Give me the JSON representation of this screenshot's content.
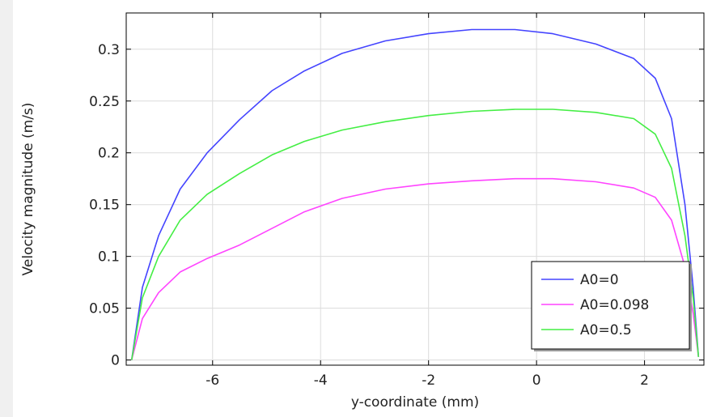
{
  "chart_data": {
    "type": "line",
    "title": "",
    "xlabel": "y-coordinate (mm)",
    "ylabel": "Velocity magnitude (m/s)",
    "xlim": [
      -7.6,
      3.1
    ],
    "ylim": [
      -0.005,
      0.335
    ],
    "xticks": [
      -6,
      -4,
      -2,
      0,
      2
    ],
    "yticks": [
      0,
      0.05,
      0.1,
      0.15,
      0.2,
      0.25,
      0.3
    ],
    "xtick_labels": [
      "-6",
      "-4",
      "-2",
      "0",
      "2"
    ],
    "ytick_labels": [
      "0",
      "0.05",
      "0.1",
      "0.15",
      "0.2",
      "0.25",
      "0.3"
    ],
    "grid": true,
    "legend_position": "bottom-right",
    "series": [
      {
        "name": "A0=0",
        "color": "#4444ff",
        "x": [
          -7.5,
          -7.3,
          -7.0,
          -6.6,
          -6.1,
          -5.5,
          -4.9,
          -4.3,
          -3.6,
          -2.8,
          -2.0,
          -1.2,
          -0.4,
          0.3,
          1.1,
          1.8,
          2.2,
          2.5,
          2.75,
          2.9,
          3.0
        ],
        "y": [
          0.0,
          0.07,
          0.12,
          0.165,
          0.2,
          0.232,
          0.26,
          0.279,
          0.296,
          0.308,
          0.315,
          0.319,
          0.319,
          0.315,
          0.305,
          0.291,
          0.272,
          0.233,
          0.15,
          0.07,
          0.003
        ]
      },
      {
        "name": "A0=0.098",
        "color": "#ff44ff",
        "x": [
          -7.5,
          -7.3,
          -7.0,
          -6.6,
          -6.1,
          -5.5,
          -4.9,
          -4.3,
          -3.6,
          -2.8,
          -2.0,
          -1.2,
          -0.4,
          0.3,
          1.1,
          1.8,
          2.2,
          2.5,
          2.75,
          2.9,
          3.0
        ],
        "y": [
          0.0,
          0.04,
          0.065,
          0.085,
          0.098,
          0.111,
          0.127,
          0.143,
          0.156,
          0.165,
          0.17,
          0.173,
          0.175,
          0.175,
          0.172,
          0.166,
          0.157,
          0.135,
          0.09,
          0.045,
          0.003
        ]
      },
      {
        "name": "A0=0.5",
        "color": "#44ee44",
        "x": [
          -7.5,
          -7.3,
          -7.0,
          -6.6,
          -6.1,
          -5.5,
          -4.9,
          -4.3,
          -3.6,
          -2.8,
          -2.0,
          -1.2,
          -0.4,
          0.3,
          1.1,
          1.8,
          2.2,
          2.5,
          2.75,
          2.9,
          3.0
        ],
        "y": [
          0.0,
          0.06,
          0.1,
          0.135,
          0.16,
          0.18,
          0.198,
          0.211,
          0.222,
          0.23,
          0.236,
          0.24,
          0.242,
          0.242,
          0.239,
          0.233,
          0.218,
          0.185,
          0.12,
          0.06,
          0.003
        ]
      }
    ]
  }
}
